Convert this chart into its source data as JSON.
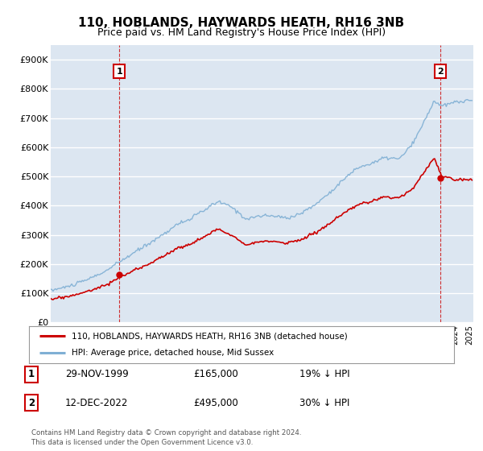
{
  "title": "110, HOBLANDS, HAYWARDS HEATH, RH16 3NB",
  "subtitle": "Price paid vs. HM Land Registry's House Price Index (HPI)",
  "ylim": [
    0,
    950000
  ],
  "yticks": [
    0,
    100000,
    200000,
    300000,
    400000,
    500000,
    600000,
    700000,
    800000,
    900000
  ],
  "ytick_labels": [
    "£0",
    "£100K",
    "£200K",
    "£300K",
    "£400K",
    "£500K",
    "£600K",
    "£700K",
    "£800K",
    "£900K"
  ],
  "background_color": "#ffffff",
  "plot_bg_color": "#dce6f1",
  "grid_color": "#ffffff",
  "hpi_color": "#7fafd4",
  "price_color": "#cc0000",
  "sale1_date": 1999.91,
  "sale1_price": 165000,
  "sale1_label": "1",
  "sale2_date": 2022.95,
  "sale2_price": 495000,
  "sale2_label": "2",
  "legend_line1": "110, HOBLANDS, HAYWARDS HEATH, RH16 3NB (detached house)",
  "legend_line2": "HPI: Average price, detached house, Mid Sussex",
  "table_row1": [
    "1",
    "29-NOV-1999",
    "£165,000",
    "19% ↓ HPI"
  ],
  "table_row2": [
    "2",
    "12-DEC-2022",
    "£495,000",
    "30% ↓ HPI"
  ],
  "footnote": "Contains HM Land Registry data © Crown copyright and database right 2024.\nThis data is licensed under the Open Government Licence v3.0.",
  "title_fontsize": 11,
  "subtitle_fontsize": 9,
  "hpi_keypoints_x": [
    1995,
    1996,
    1997,
    1998,
    1999,
    2000,
    2001,
    2002,
    2003,
    2004,
    2005,
    2006,
    2007,
    2008,
    2009,
    2010,
    2011,
    2012,
    2013,
    2014,
    2015,
    2016,
    2017,
    2018,
    2019,
    2020,
    2021,
    2022,
    2022.5,
    2023,
    2024,
    2025
  ],
  "hpi_keypoints_y": [
    110000,
    120000,
    135000,
    155000,
    178000,
    210000,
    240000,
    270000,
    300000,
    335000,
    355000,
    385000,
    415000,
    395000,
    355000,
    365000,
    365000,
    358000,
    375000,
    405000,
    445000,
    490000,
    530000,
    545000,
    565000,
    560000,
    615000,
    710000,
    760000,
    740000,
    755000,
    760000
  ],
  "price_keypoints_x": [
    1995,
    1996,
    1997,
    1998,
    1999,
    2000,
    2001,
    2002,
    2003,
    2004,
    2005,
    2006,
    2007,
    2008,
    2009,
    2010,
    2011,
    2012,
    2013,
    2014,
    2015,
    2016,
    2017,
    2018,
    2019,
    2020,
    2021,
    2022,
    2022.5,
    2023,
    2024,
    2025
  ],
  "price_keypoints_y": [
    80000,
    87000,
    97000,
    112000,
    130000,
    155000,
    178000,
    200000,
    225000,
    252000,
    268000,
    293000,
    320000,
    298000,
    268000,
    276000,
    278000,
    272000,
    285000,
    308000,
    338000,
    373000,
    402000,
    415000,
    430000,
    427000,
    462000,
    530000,
    565000,
    500000,
    490000,
    490000
  ]
}
